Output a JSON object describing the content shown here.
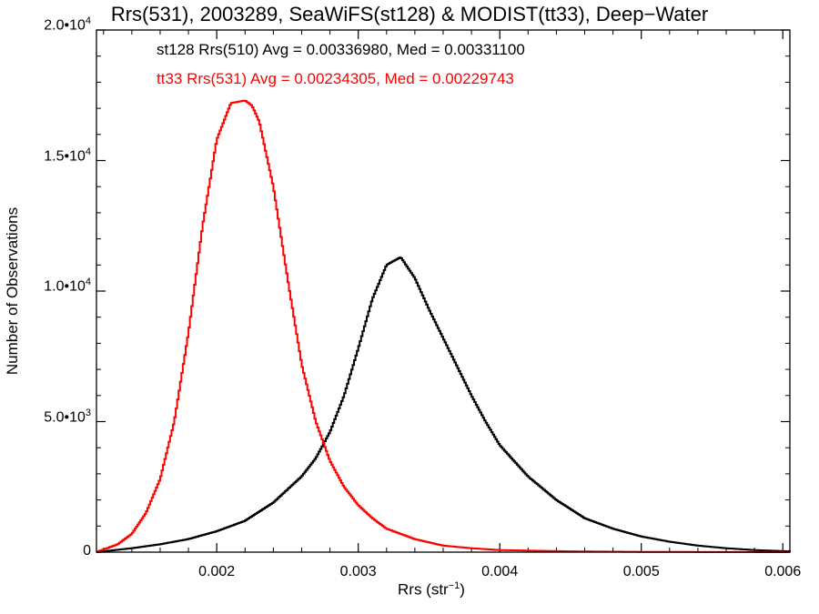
{
  "chart_data": {
    "type": "histogram",
    "title": "Rrs(531), 2003289, SeaWiFS(st128) & MODIST(tt33), Deep−Water",
    "xlabel_base": "Rrs (str",
    "xlabel_exp": "−1",
    "xlabel_close": ")",
    "ylabel": "Number of Observations",
    "xlim": [
      0.00115,
      0.00605
    ],
    "ylim": [
      0,
      20000
    ],
    "x_ticks": [
      {
        "value": 0.002,
        "label": "0.002"
      },
      {
        "value": 0.003,
        "label": "0.003"
      },
      {
        "value": 0.004,
        "label": "0.004"
      },
      {
        "value": 0.005,
        "label": "0.005"
      },
      {
        "value": 0.006,
        "label": "0.006"
      }
    ],
    "y_ticks": [
      {
        "value": 0,
        "mant": "0",
        "exp": ""
      },
      {
        "value": 5000,
        "mant": "5.0•10",
        "exp": "3"
      },
      {
        "value": 10000,
        "mant": "1.0•10",
        "exp": "4"
      },
      {
        "value": 15000,
        "mant": "1.5•10",
        "exp": "4"
      },
      {
        "value": 20000,
        "mant": "2.0•10",
        "exp": "4"
      }
    ],
    "annotations": [
      {
        "text": "st128 Rrs(510) Avg = 0.00336980, Med = 0.00331100",
        "color": "#000000"
      },
      {
        "text": "tt33 Rrs(531) Avg = 0.00234305, Med = 0.00229743",
        "color": "#ff0000"
      }
    ],
    "series": [
      {
        "color": "#000000",
        "x": [
          0.00115,
          0.0012,
          0.0014,
          0.0016,
          0.0018,
          0.002,
          0.0022,
          0.0024,
          0.0026,
          0.0027,
          0.0028,
          0.0029,
          0.003,
          0.0031,
          0.0032,
          0.0033,
          0.0034,
          0.0035,
          0.0036,
          0.0037,
          0.0038,
          0.0039,
          0.004,
          0.0042,
          0.0044,
          0.0046,
          0.0048,
          0.005,
          0.0052,
          0.0054,
          0.0056,
          0.0058,
          0.006,
          0.00605
        ],
        "y": [
          0,
          30,
          150,
          300,
          500,
          800,
          1200,
          1900,
          2900,
          3600,
          4600,
          6000,
          7800,
          9700,
          11000,
          11300,
          10500,
          9300,
          8200,
          7100,
          6000,
          5000,
          4100,
          2900,
          2000,
          1300,
          900,
          600,
          400,
          250,
          150,
          80,
          40,
          30
        ]
      },
      {
        "color": "#ff0000",
        "x": [
          0.00115,
          0.0012,
          0.0013,
          0.0014,
          0.0015,
          0.0016,
          0.0017,
          0.0018,
          0.0019,
          0.002,
          0.0021,
          0.0022,
          0.00225,
          0.0023,
          0.0024,
          0.0025,
          0.0026,
          0.0027,
          0.0028,
          0.0029,
          0.003,
          0.0031,
          0.0032,
          0.0034,
          0.0036,
          0.0038,
          0.004,
          0.0045,
          0.005,
          0.00605
        ],
        "y": [
          0,
          100,
          300,
          700,
          1500,
          2800,
          5000,
          8400,
          12500,
          15800,
          17200,
          17300,
          17100,
          16500,
          14000,
          10500,
          7200,
          5000,
          3500,
          2500,
          1800,
          1300,
          900,
          500,
          250,
          150,
          80,
          30,
          10,
          0
        ]
      }
    ]
  }
}
